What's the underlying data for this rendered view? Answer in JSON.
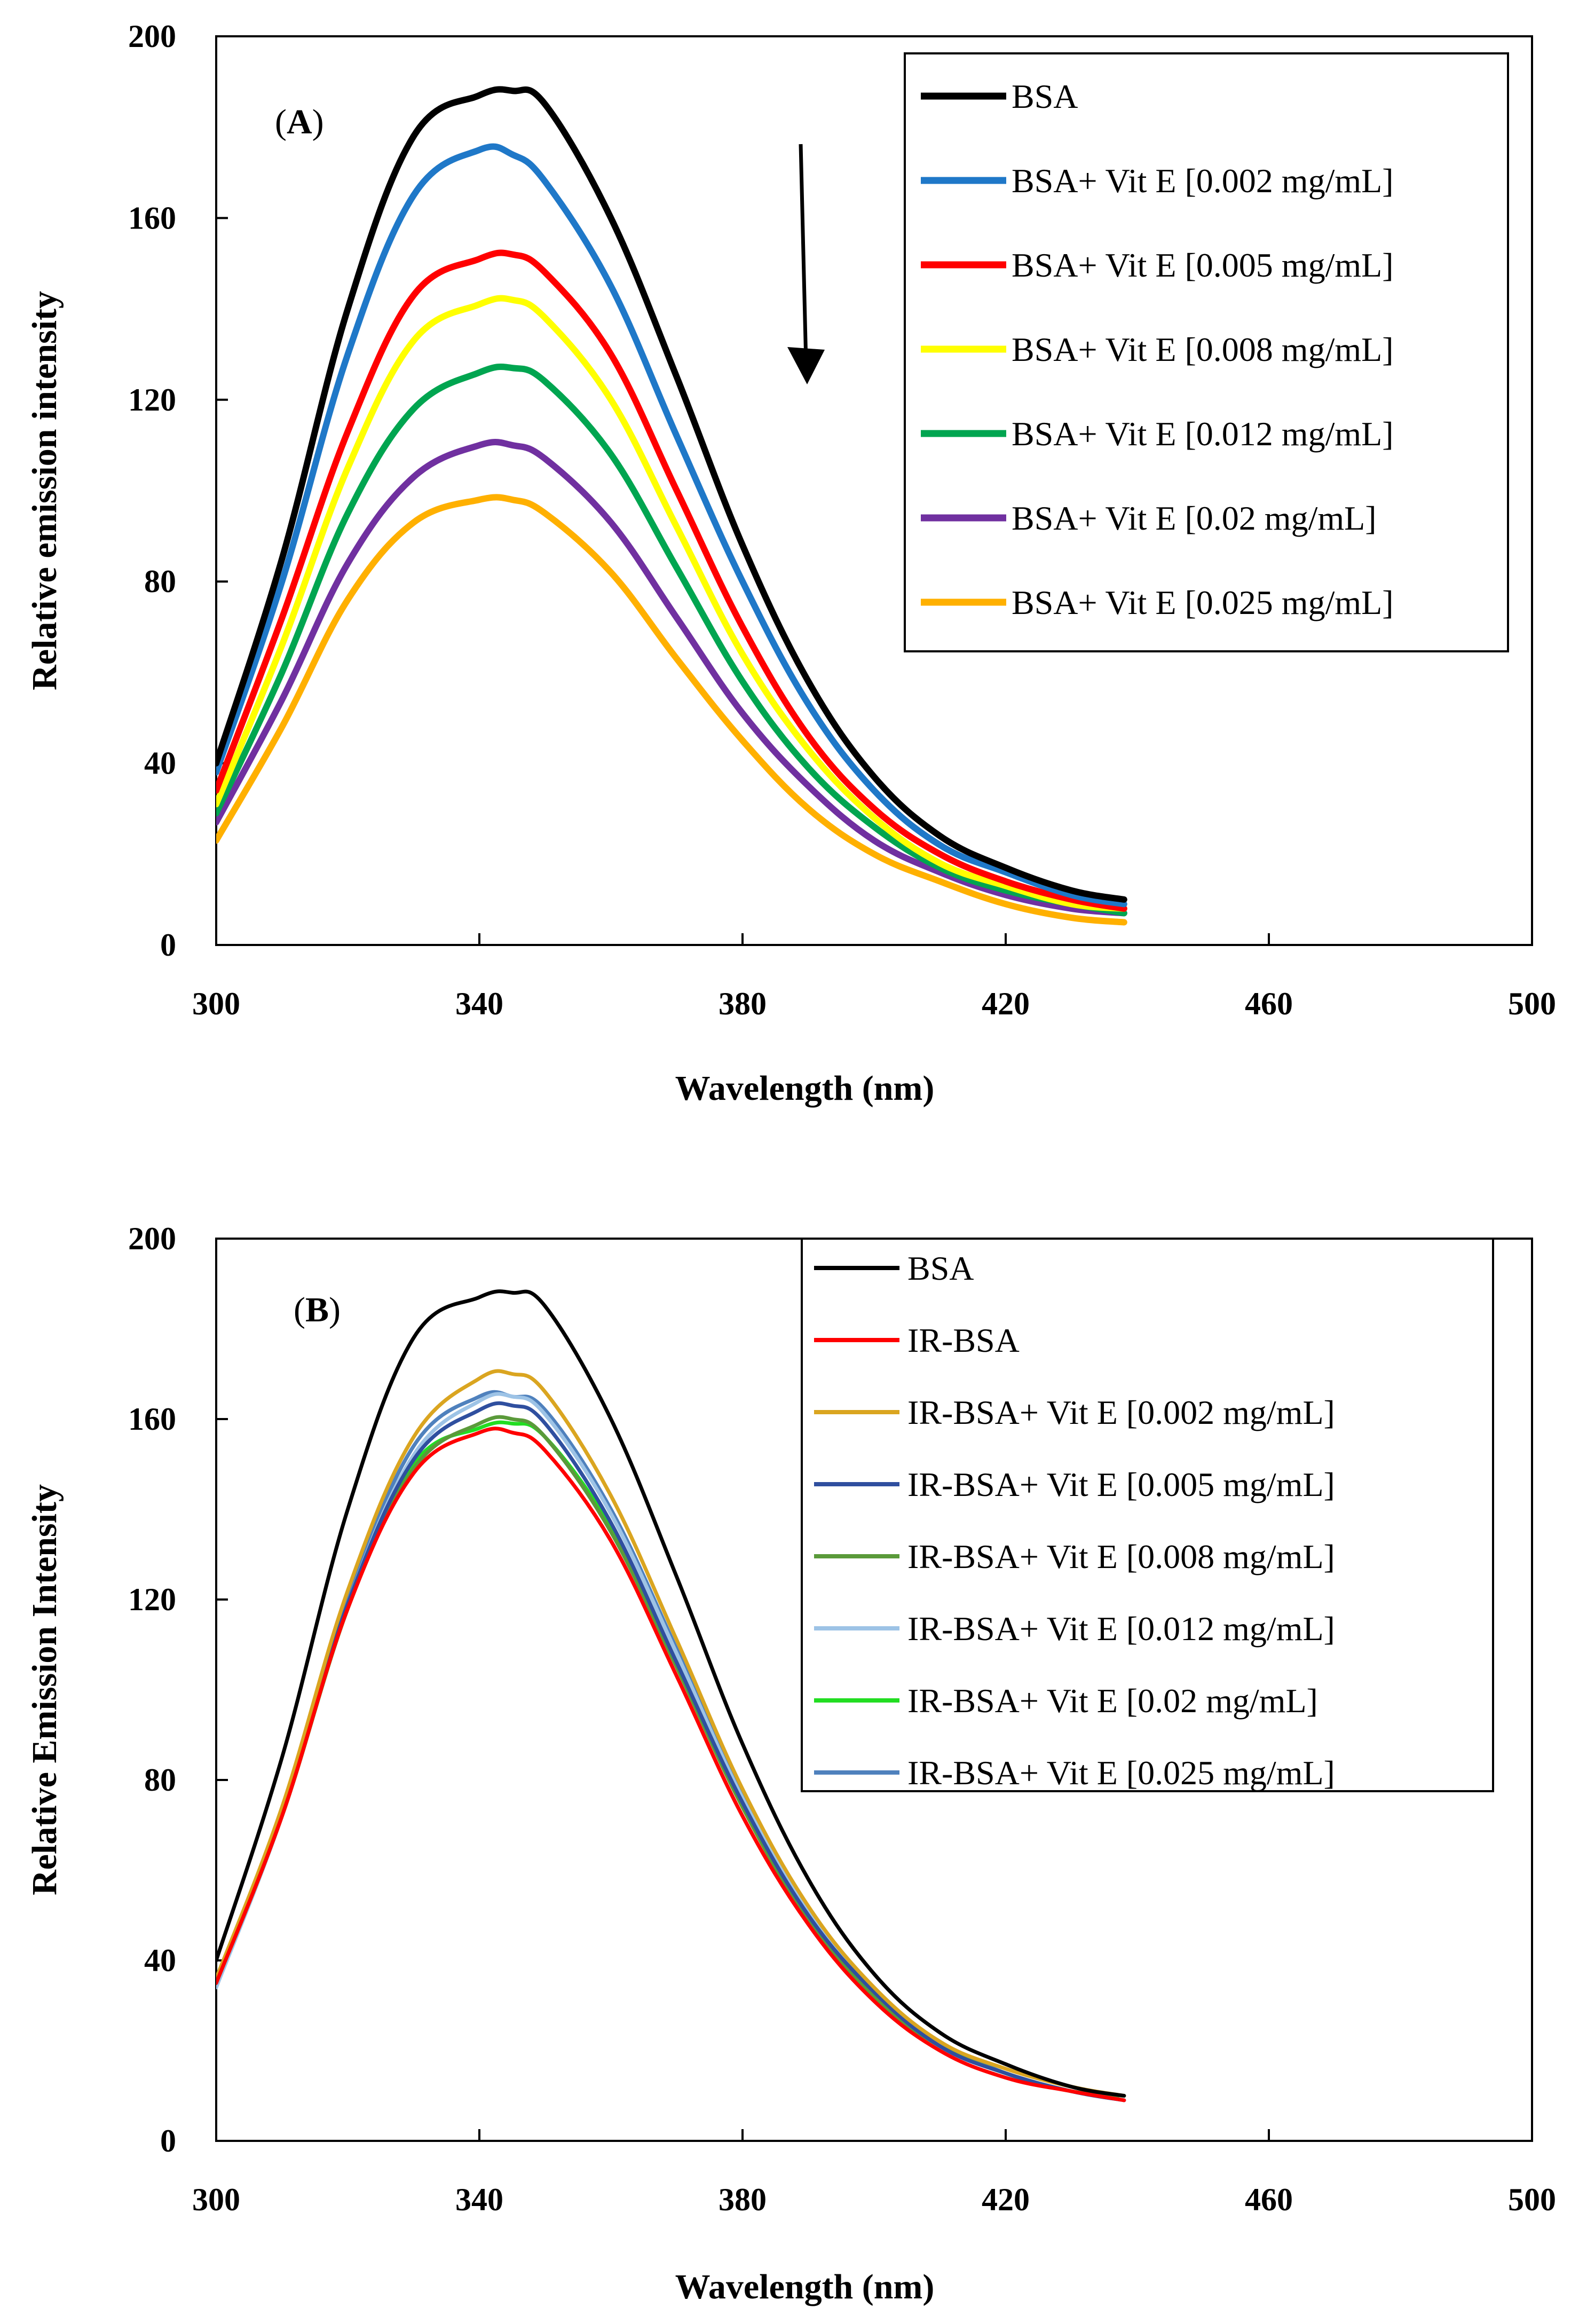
{
  "chart_data": [
    {
      "type": "line",
      "panel_label": "(A)",
      "panel_letter": "A",
      "xlabel": "Wavelength (nm)",
      "ylabel": "Relative emission intensity",
      "xlim": [
        300,
        500
      ],
      "ylim": [
        0,
        200
      ],
      "xticks": [
        "300",
        "340",
        "380",
        "420",
        "460",
        "500"
      ],
      "yticks": [
        "0",
        "40",
        "80",
        "120",
        "160",
        "200"
      ],
      "legend_position": "top-right",
      "annotation": "downward arrow indicating decreasing intensity with increasing Vit E",
      "x": [
        300,
        310,
        320,
        330,
        340,
        345,
        350,
        360,
        370,
        380,
        390,
        400,
        410,
        420,
        430,
        438
      ],
      "series": [
        {
          "name": "BSA",
          "color": "#000000",
          "values": [
            40,
            85,
            140,
            178,
            187,
            188,
            185,
            160,
            125,
            88,
            58,
            37,
            24,
            17,
            12,
            10
          ]
        },
        {
          "name": "BSA+ Vit E [0.002 mg/mL]",
          "color": "#1f78c8",
          "values": [
            38,
            80,
            130,
            165,
            175,
            174,
            168,
            145,
            112,
            80,
            53,
            34,
            22,
            16,
            11,
            9
          ]
        },
        {
          "name": "BSA+ Vit E [0.005 mg/mL]",
          "color": "#ff0000",
          "values": [
            34,
            72,
            113,
            143,
            151,
            152,
            148,
            130,
            100,
            70,
            46,
            30,
            20,
            14,
            10,
            8
          ]
        },
        {
          "name": "BSA+ Vit E [0.008 mg/mL]",
          "color": "#ffff00",
          "values": [
            31,
            66,
            105,
            133,
            141,
            142,
            138,
            120,
            92,
            64,
            43,
            28,
            18,
            13,
            9,
            8
          ]
        },
        {
          "name": "BSA+ Vit E [0.012 mg/mL]",
          "color": "#00a550",
          "values": [
            29,
            60,
            95,
            118,
            126,
            127,
            124,
            108,
            83,
            58,
            39,
            26,
            17,
            12,
            9,
            7
          ]
        },
        {
          "name": "BSA+ Vit E [0.02 mg/mL]",
          "color": "#7030a0",
          "values": [
            27,
            54,
            84,
            103,
            110,
            110,
            107,
            93,
            72,
            51,
            35,
            23,
            16,
            11,
            8,
            7
          ]
        },
        {
          "name": "BSA+ Vit E [0.025 mg/mL]",
          "color": "#ffb000",
          "values": [
            23,
            48,
            76,
            93,
            98,
            98,
            95,
            82,
            63,
            45,
            30,
            20,
            14,
            9,
            6,
            5
          ]
        }
      ]
    },
    {
      "type": "line",
      "panel_label": "(B)",
      "panel_letter": "B",
      "xlabel": "Wavelength (nm)",
      "ylabel": "Relative Emission Intensity",
      "xlim": [
        300,
        500
      ],
      "ylim": [
        0,
        200
      ],
      "xticks": [
        "300",
        "340",
        "380",
        "420",
        "460",
        "500"
      ],
      "yticks": [
        "0",
        "40",
        "80",
        "120",
        "160",
        "200"
      ],
      "legend_position": "top-right",
      "x": [
        300,
        310,
        320,
        330,
        340,
        345,
        350,
        360,
        370,
        380,
        390,
        400,
        410,
        420,
        430,
        438
      ],
      "series": [
        {
          "name": "BSA",
          "color": "#000000",
          "values": [
            40,
            85,
            140,
            178,
            187,
            188,
            185,
            160,
            125,
            88,
            58,
            37,
            24,
            17,
            12,
            10
          ]
        },
        {
          "name": "IR-BSA",
          "color": "#ff0000",
          "values": [
            35,
            72,
            118,
            148,
            157,
            157,
            153,
            133,
            103,
            72,
            48,
            31,
            20,
            14,
            11,
            9
          ]
        },
        {
          "name": "IR-BSA+ Vit E [0.002 mg/mL]",
          "color": "#daa520",
          "values": [
            36,
            74,
            122,
            156,
            169,
            170,
            166,
            143,
            111,
            78,
            52,
            34,
            22,
            16,
            12,
            10
          ]
        },
        {
          "name": "IR-BSA+ Vit E [0.005 mg/mL]",
          "color": "#2f4f9f",
          "values": [
            35,
            73,
            119,
            151,
            162,
            163,
            159,
            137,
            106,
            75,
            50,
            33,
            21,
            15,
            11,
            9
          ]
        },
        {
          "name": "IR-BSA+ Vit E [0.008 mg/mL]",
          "color": "#5a9a3a",
          "values": [
            35,
            72,
            118,
            149,
            159,
            160,
            156,
            135,
            105,
            74,
            49,
            32,
            21,
            15,
            11,
            10
          ]
        },
        {
          "name": "IR-BSA+ Vit E [0.012 mg/mL]",
          "color": "#9dc3e6",
          "values": [
            34,
            72,
            119,
            152,
            164,
            165,
            161,
            139,
            108,
            76,
            51,
            33,
            21,
            15,
            11,
            9
          ]
        },
        {
          "name": "IR-BSA+ Vit E [0.02 mg/mL]",
          "color": "#22dd22",
          "values": [
            35,
            72,
            118,
            150,
            158,
            159,
            156,
            136,
            106,
            75,
            50,
            32,
            21,
            15,
            11,
            10
          ]
        },
        {
          "name": "IR-BSA+ Vit E [0.025 mg/mL]",
          "color": "#4f81bd",
          "values": [
            35,
            73,
            120,
            154,
            165,
            165,
            162,
            140,
            109,
            77,
            51,
            33,
            22,
            15,
            11,
            9
          ]
        }
      ]
    }
  ]
}
